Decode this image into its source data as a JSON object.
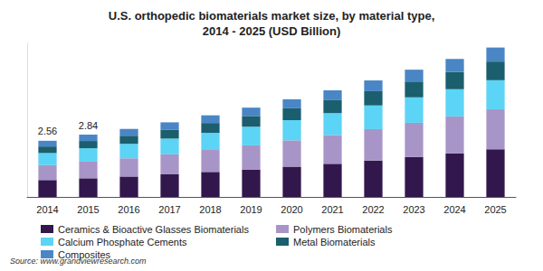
{
  "chart_data": {
    "type": "bar",
    "title": "U.S. orthopedic biomaterials market size, by material type,\n2014 - 2025 (USD Billion)",
    "source": "Source: www.grandviewresearch.com",
    "categories": [
      "2014",
      "2015",
      "2016",
      "2017",
      "2018",
      "2019",
      "2020",
      "2021",
      "2022",
      "2023",
      "2024",
      "2025"
    ],
    "series": [
      {
        "name": "Ceramics & Bioactive Glasses Biomaterials",
        "color": "#32174d",
        "values": [
          0.77,
          0.85,
          0.93,
          1.03,
          1.14,
          1.25,
          1.38,
          1.51,
          1.66,
          1.82,
          1.98,
          2.17
        ]
      },
      {
        "name": "Polymers Biomaterials",
        "color": "#a895c7",
        "values": [
          0.68,
          0.76,
          0.83,
          0.91,
          1.0,
          1.1,
          1.2,
          1.31,
          1.43,
          1.56,
          1.69,
          1.83
        ]
      },
      {
        "name": "Calcium Phosphate Cements",
        "color": "#5bd4f5",
        "values": [
          0.55,
          0.61,
          0.66,
          0.72,
          0.78,
          0.85,
          0.92,
          1.0,
          1.08,
          1.16,
          1.24,
          1.32
        ]
      },
      {
        "name": "Metal Biomaterials",
        "color": "#1b5e6e",
        "values": [
          0.3,
          0.33,
          0.37,
          0.41,
          0.45,
          0.49,
          0.54,
          0.59,
          0.65,
          0.72,
          0.79,
          0.85
        ]
      },
      {
        "name": "Composites",
        "color": "#4a86c5",
        "values": [
          0.26,
          0.29,
          0.31,
          0.33,
          0.35,
          0.38,
          0.41,
          0.45,
          0.49,
          0.54,
          0.59,
          0.64
        ]
      }
    ],
    "annotations": [
      {
        "category": "2014",
        "value": 2.56
      },
      {
        "category": "2015",
        "value": 2.84
      }
    ],
    "ylim": [
      0,
      7
    ],
    "stacked": true,
    "grid": false,
    "legend": "bottom",
    "tick_labels": "x"
  }
}
